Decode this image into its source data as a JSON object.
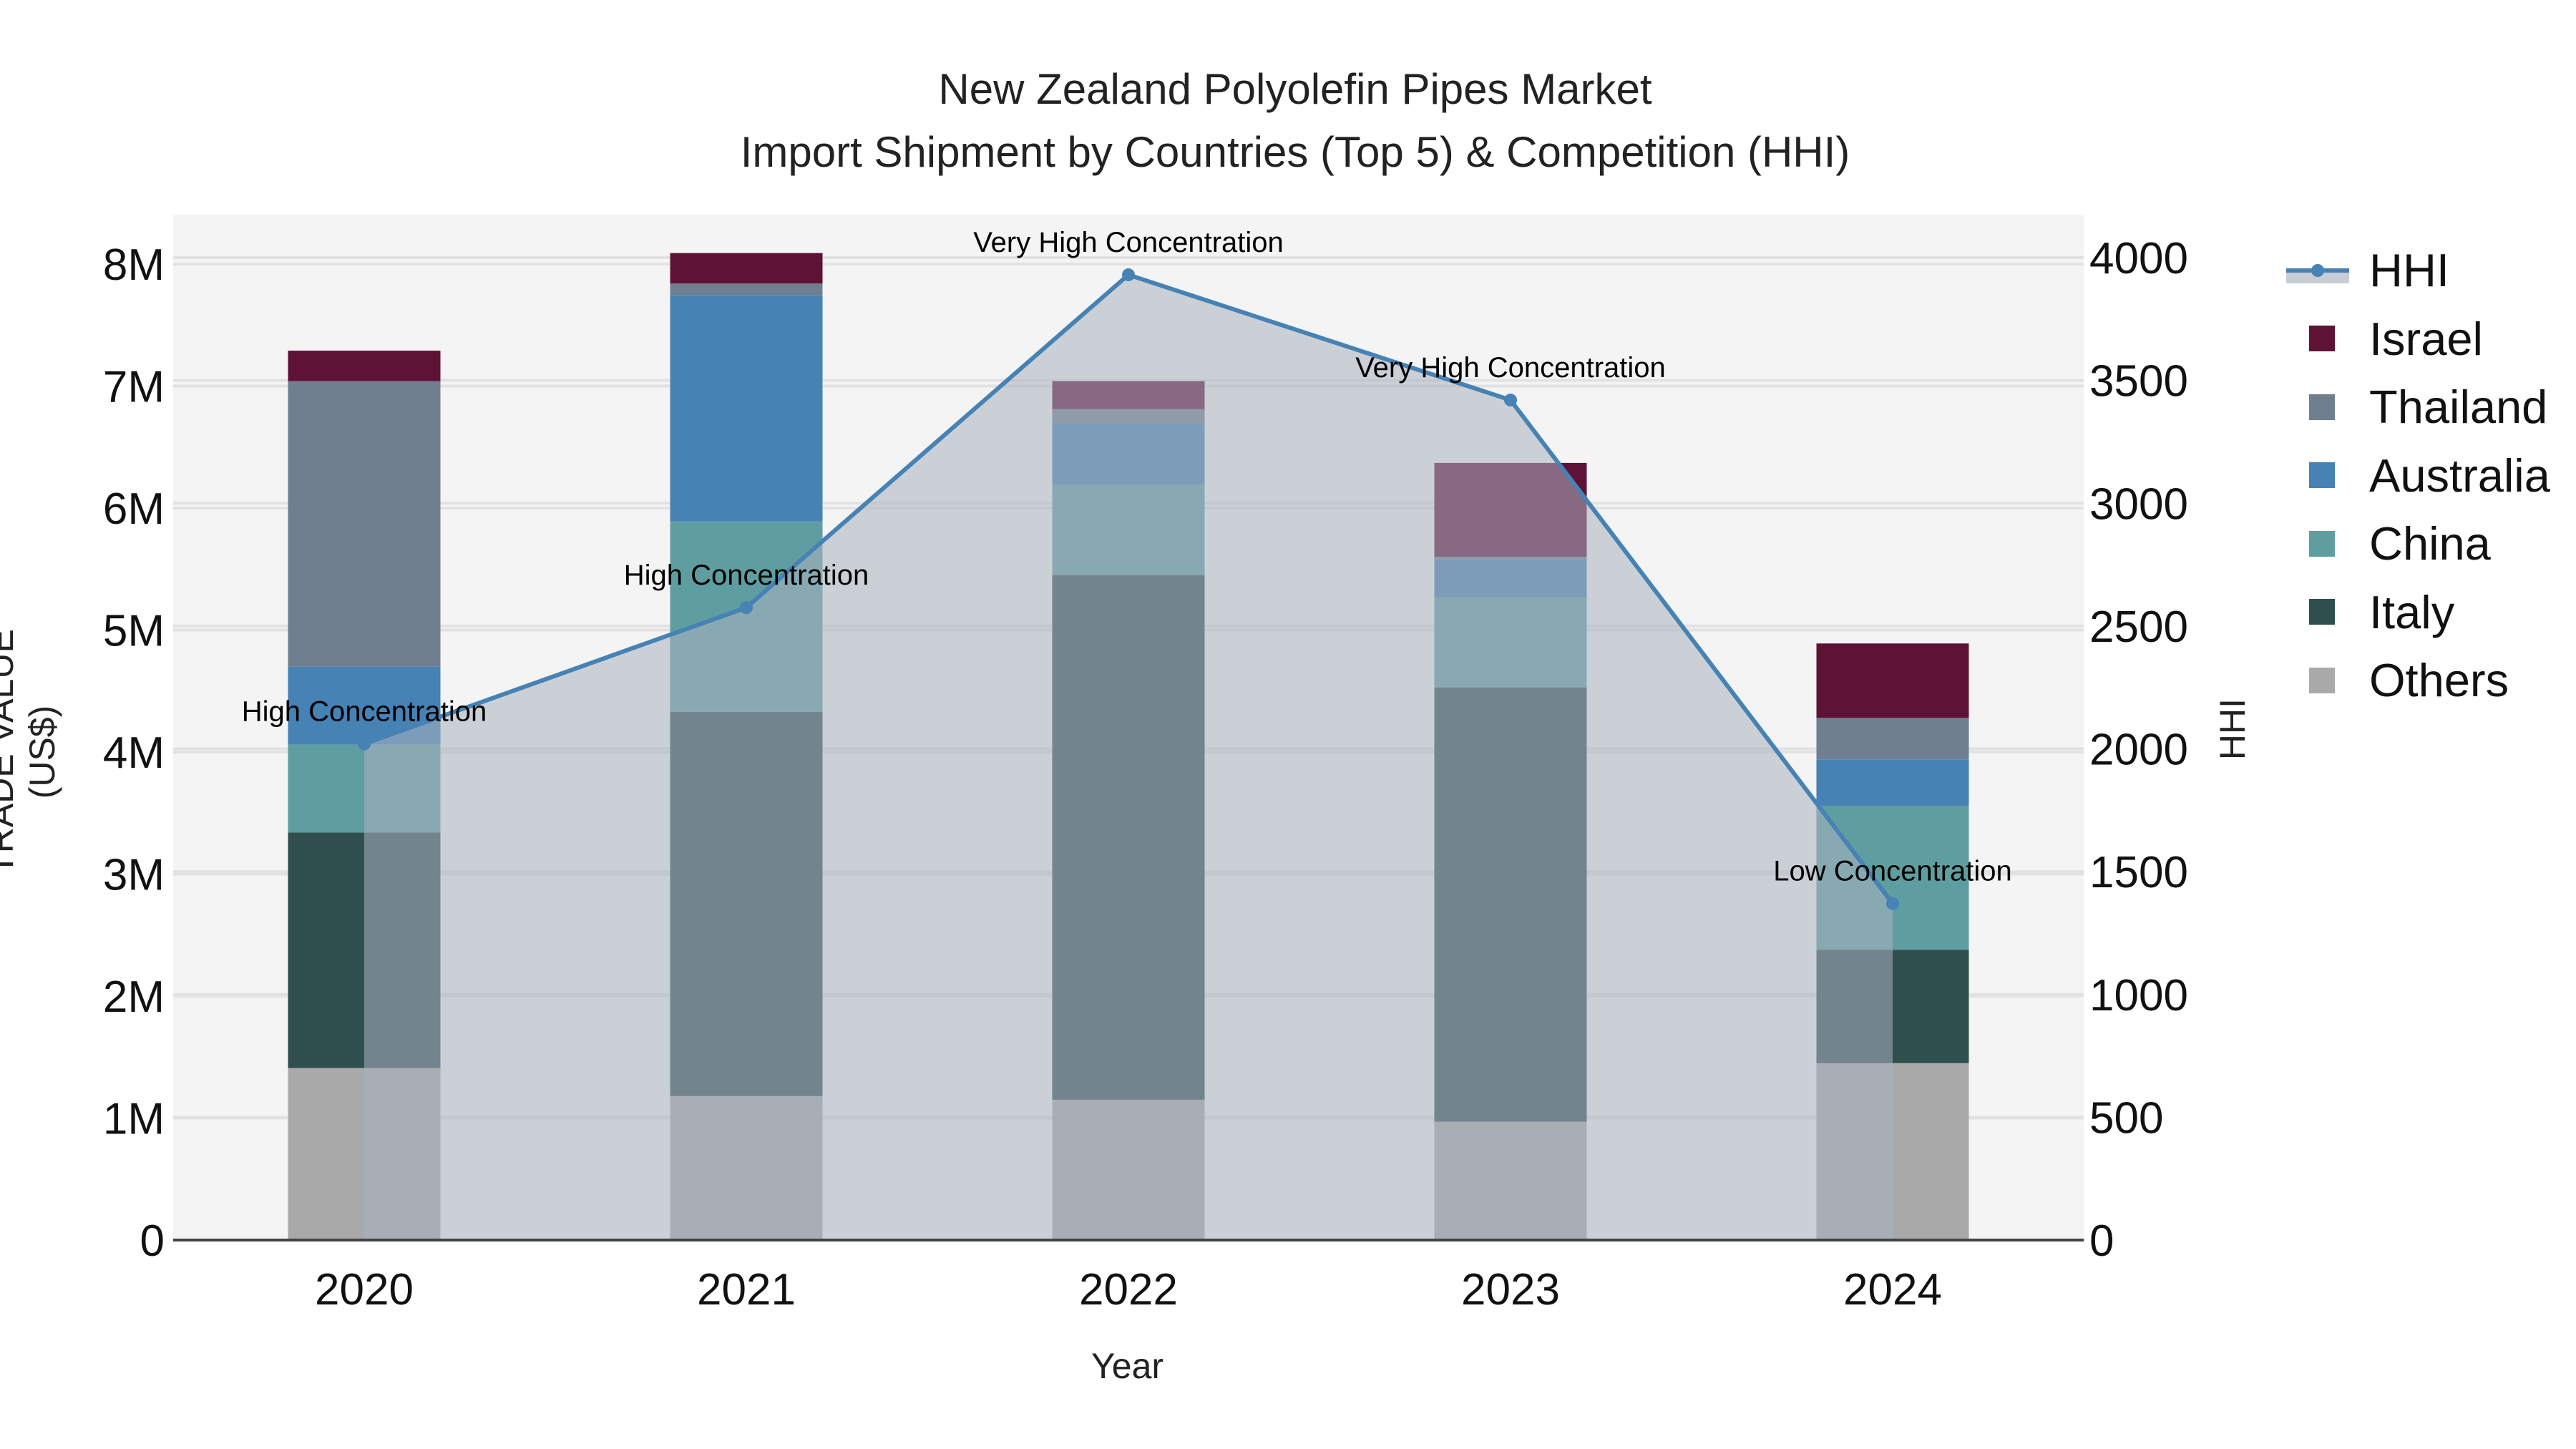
{
  "title": {
    "line1": "New Zealand Polyolefin Pipes Market",
    "line2": "Import Shipment by Countries (Top 5) & Competition (HHI)"
  },
  "axes": {
    "xlabel": "Year",
    "ylabel": "TRADE VALUE (US$)",
    "y2label": "HHI",
    "y_ticks": [
      "0",
      "1M",
      "2M",
      "3M",
      "4M",
      "5M",
      "6M",
      "7M",
      "8M"
    ],
    "y2_ticks": [
      "0",
      "500",
      "1000",
      "1500",
      "2000",
      "2500",
      "3000",
      "3500",
      "4000"
    ]
  },
  "legend": [
    {
      "label": "HHI",
      "type": "line",
      "color": "#4682b4"
    },
    {
      "label": "Israel",
      "type": "bar",
      "color": "#5e1336"
    },
    {
      "label": "Thailand",
      "type": "bar",
      "color": "#6f7f8f"
    },
    {
      "label": "Australia",
      "type": "bar",
      "color": "#4682b4"
    },
    {
      "label": "China",
      "type": "bar",
      "color": "#5f9ea0"
    },
    {
      "label": "Italy",
      "type": "bar",
      "color": "#2f4f4f"
    },
    {
      "label": "Others",
      "type": "bar",
      "color": "#a9a9a9"
    }
  ],
  "colors": {
    "plot_bg": "#f4f4f4",
    "grid": "#e2e2e2",
    "hhi_line": "#4682b4",
    "hhi_fill": "rgba(170,178,192,0.55)"
  },
  "chart_data": {
    "type": "bar",
    "title": "New Zealand Polyolefin Pipes Market — Import Shipment by Countries (Top 5) & Competition (HHI)",
    "xlabel": "Year",
    "ylabel": "TRADE VALUE (US$)",
    "y2label": "HHI",
    "ylim": [
      0,
      8400000
    ],
    "y2lim": [
      0,
      4200
    ],
    "stacked": true,
    "categories": [
      "2020",
      "2021",
      "2022",
      "2023",
      "2024"
    ],
    "series": [
      {
        "name": "Others",
        "color": "#a9a9a9",
        "values": [
          1410000,
          1180000,
          1150000,
          970000,
          1450000
        ]
      },
      {
        "name": "Italy",
        "color": "#2f4f4f",
        "values": [
          1930000,
          3150000,
          4300000,
          3560000,
          930000
        ]
      },
      {
        "name": "China",
        "color": "#5f9ea0",
        "values": [
          720000,
          1560000,
          740000,
          740000,
          1180000
        ]
      },
      {
        "name": "Australia",
        "color": "#4682b4",
        "values": [
          640000,
          1850000,
          500000,
          310000,
          380000
        ]
      },
      {
        "name": "Thailand",
        "color": "#6f7f8f",
        "values": [
          2340000,
          100000,
          120000,
          20000,
          340000
        ]
      },
      {
        "name": "Israel",
        "color": "#5e1336",
        "values": [
          250000,
          250000,
          230000,
          770000,
          610000
        ]
      }
    ],
    "line_series": {
      "name": "HHI",
      "axis": "y2",
      "color": "#4682b4",
      "fill": "tozeroy",
      "values": [
        2020,
        2575,
        3930,
        3420,
        1370
      ],
      "annotations": [
        "High Concentration",
        "High Concentration",
        "Very High Concentration",
        "Very High Concentration",
        "Low Concentration"
      ]
    },
    "grid": true,
    "legend_position": "right"
  }
}
